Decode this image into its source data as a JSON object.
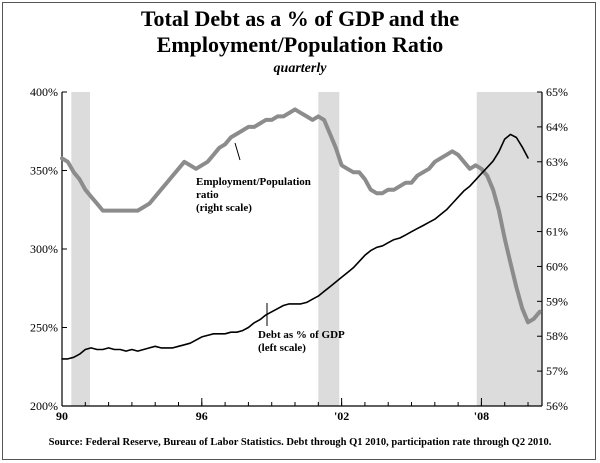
{
  "title_line1": "Total Debt as a % of GDP and the",
  "title_line2": "Employment/Population Ratio",
  "subtitle": "quarterly",
  "source": "Source: Federal Reserve, Bureau of Labor Statistics. Debt through Q1 2010, participation rate through Q2 2010.",
  "chart_data": {
    "type": "line",
    "x_ticks": [
      {
        "value": 1990,
        "label": "90"
      },
      {
        "value": 1996,
        "label": "96"
      },
      {
        "value": 2002,
        "label": "'02"
      },
      {
        "value": 2008,
        "label": "'08"
      }
    ],
    "xlim": [
      1990,
      2010.6
    ],
    "left_axis": {
      "ylim": [
        200,
        400
      ],
      "ticks": [
        200,
        250,
        300,
        350,
        400
      ],
      "suffix": "%"
    },
    "right_axis": {
      "ylim": [
        56,
        65
      ],
      "ticks": [
        56,
        57,
        58,
        59,
        60,
        61,
        62,
        63,
        64,
        65
      ],
      "suffix": "%"
    },
    "recessions": [
      [
        1990.4,
        1991.2
      ],
      [
        2001.0,
        2001.9
      ],
      [
        2007.8,
        2010.6
      ]
    ],
    "series": [
      {
        "axis": "right",
        "color": "#8c8c8c",
        "annotation": [
          "Employment/Population",
          "ratio",
          "(right scale)"
        ],
        "points": [
          [
            1990.0,
            63.1
          ],
          [
            1990.25,
            63.0
          ],
          [
            1990.5,
            62.7
          ],
          [
            1990.75,
            62.5
          ],
          [
            1991.0,
            62.2
          ],
          [
            1991.25,
            62.0
          ],
          [
            1991.5,
            61.8
          ],
          [
            1991.75,
            61.6
          ],
          [
            1992.0,
            61.6
          ],
          [
            1992.25,
            61.6
          ],
          [
            1992.5,
            61.6
          ],
          [
            1992.75,
            61.6
          ],
          [
            1993.0,
            61.6
          ],
          [
            1993.25,
            61.6
          ],
          [
            1993.5,
            61.7
          ],
          [
            1993.75,
            61.8
          ],
          [
            1994.0,
            62.0
          ],
          [
            1994.25,
            62.2
          ],
          [
            1994.5,
            62.4
          ],
          [
            1994.75,
            62.6
          ],
          [
            1995.0,
            62.8
          ],
          [
            1995.25,
            63.0
          ],
          [
            1995.5,
            62.9
          ],
          [
            1995.75,
            62.8
          ],
          [
            1996.0,
            62.9
          ],
          [
            1996.25,
            63.0
          ],
          [
            1996.5,
            63.2
          ],
          [
            1996.75,
            63.4
          ],
          [
            1997.0,
            63.5
          ],
          [
            1997.25,
            63.7
          ],
          [
            1997.5,
            63.8
          ],
          [
            1997.75,
            63.9
          ],
          [
            1998.0,
            64.0
          ],
          [
            1998.25,
            64.0
          ],
          [
            1998.5,
            64.1
          ],
          [
            1998.75,
            64.2
          ],
          [
            1999.0,
            64.2
          ],
          [
            1999.25,
            64.3
          ],
          [
            1999.5,
            64.3
          ],
          [
            1999.75,
            64.4
          ],
          [
            2000.0,
            64.5
          ],
          [
            2000.25,
            64.4
          ],
          [
            2000.5,
            64.3
          ],
          [
            2000.75,
            64.2
          ],
          [
            2001.0,
            64.3
          ],
          [
            2001.25,
            64.2
          ],
          [
            2001.5,
            63.8
          ],
          [
            2001.75,
            63.4
          ],
          [
            2002.0,
            62.9
          ],
          [
            2002.25,
            62.8
          ],
          [
            2002.5,
            62.7
          ],
          [
            2002.75,
            62.7
          ],
          [
            2003.0,
            62.5
          ],
          [
            2003.25,
            62.2
          ],
          [
            2003.5,
            62.1
          ],
          [
            2003.75,
            62.1
          ],
          [
            2004.0,
            62.2
          ],
          [
            2004.25,
            62.2
          ],
          [
            2004.5,
            62.3
          ],
          [
            2004.75,
            62.4
          ],
          [
            2005.0,
            62.4
          ],
          [
            2005.25,
            62.6
          ],
          [
            2005.5,
            62.7
          ],
          [
            2005.75,
            62.8
          ],
          [
            2006.0,
            63.0
          ],
          [
            2006.25,
            63.1
          ],
          [
            2006.5,
            63.2
          ],
          [
            2006.75,
            63.3
          ],
          [
            2007.0,
            63.2
          ],
          [
            2007.25,
            63.0
          ],
          [
            2007.5,
            62.8
          ],
          [
            2007.75,
            62.9
          ],
          [
            2008.0,
            62.8
          ],
          [
            2008.25,
            62.6
          ],
          [
            2008.5,
            62.2
          ],
          [
            2008.75,
            61.6
          ],
          [
            2009.0,
            60.8
          ],
          [
            2009.25,
            60.1
          ],
          [
            2009.5,
            59.4
          ],
          [
            2009.75,
            58.8
          ],
          [
            2010.0,
            58.4
          ],
          [
            2010.25,
            58.5
          ],
          [
            2010.5,
            58.7
          ]
        ]
      },
      {
        "axis": "left",
        "color": "#000000",
        "annotation": [
          "Debt as % of GDP",
          "(left scale)"
        ],
        "points": [
          [
            1990.0,
            230
          ],
          [
            1990.25,
            230
          ],
          [
            1990.5,
            231
          ],
          [
            1990.75,
            233
          ],
          [
            1991.0,
            236
          ],
          [
            1991.25,
            237
          ],
          [
            1991.5,
            236
          ],
          [
            1991.75,
            236
          ],
          [
            1992.0,
            237
          ],
          [
            1992.25,
            236
          ],
          [
            1992.5,
            236
          ],
          [
            1992.75,
            235
          ],
          [
            1993.0,
            236
          ],
          [
            1993.25,
            235
          ],
          [
            1993.5,
            236
          ],
          [
            1993.75,
            237
          ],
          [
            1994.0,
            238
          ],
          [
            1994.25,
            237
          ],
          [
            1994.5,
            237
          ],
          [
            1994.75,
            237
          ],
          [
            1995.0,
            238
          ],
          [
            1995.25,
            239
          ],
          [
            1995.5,
            240
          ],
          [
            1995.75,
            242
          ],
          [
            1996.0,
            244
          ],
          [
            1996.25,
            245
          ],
          [
            1996.5,
            246
          ],
          [
            1996.75,
            246
          ],
          [
            1997.0,
            246
          ],
          [
            1997.25,
            247
          ],
          [
            1997.5,
            247
          ],
          [
            1997.75,
            248
          ],
          [
            1998.0,
            250
          ],
          [
            1998.25,
            253
          ],
          [
            1998.5,
            255
          ],
          [
            1998.75,
            258
          ],
          [
            1999.0,
            260
          ],
          [
            1999.25,
            262
          ],
          [
            1999.5,
            264
          ],
          [
            1999.75,
            265
          ],
          [
            2000.0,
            265
          ],
          [
            2000.25,
            265
          ],
          [
            2000.5,
            266
          ],
          [
            2000.75,
            268
          ],
          [
            2001.0,
            270
          ],
          [
            2001.25,
            273
          ],
          [
            2001.5,
            276
          ],
          [
            2001.75,
            279
          ],
          [
            2002.0,
            282
          ],
          [
            2002.25,
            285
          ],
          [
            2002.5,
            288
          ],
          [
            2002.75,
            292
          ],
          [
            2003.0,
            296
          ],
          [
            2003.25,
            299
          ],
          [
            2003.5,
            301
          ],
          [
            2003.75,
            302
          ],
          [
            2004.0,
            304
          ],
          [
            2004.25,
            306
          ],
          [
            2004.5,
            307
          ],
          [
            2004.75,
            309
          ],
          [
            2005.0,
            311
          ],
          [
            2005.25,
            313
          ],
          [
            2005.5,
            315
          ],
          [
            2005.75,
            317
          ],
          [
            2006.0,
            319
          ],
          [
            2006.25,
            322
          ],
          [
            2006.5,
            325
          ],
          [
            2006.75,
            329
          ],
          [
            2007.0,
            333
          ],
          [
            2007.25,
            337
          ],
          [
            2007.5,
            340
          ],
          [
            2007.75,
            344
          ],
          [
            2008.0,
            348
          ],
          [
            2008.25,
            352
          ],
          [
            2008.5,
            356
          ],
          [
            2008.75,
            362
          ],
          [
            2009.0,
            370
          ],
          [
            2009.25,
            373
          ],
          [
            2009.5,
            371
          ],
          [
            2009.75,
            365
          ],
          [
            2010.0,
            358
          ]
        ]
      }
    ]
  }
}
